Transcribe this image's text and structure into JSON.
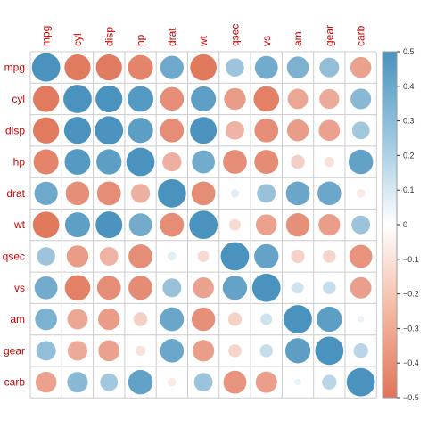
{
  "chart_data": {
    "type": "heatmap",
    "title": "",
    "variables": [
      "mpg",
      "cyl",
      "disp",
      "hp",
      "drat",
      "wt",
      "qsec",
      "vs",
      "am",
      "gear",
      "carb"
    ],
    "matrix": [
      [
        1.0,
        -0.85,
        -0.85,
        -0.78,
        0.68,
        -0.87,
        0.42,
        0.66,
        0.6,
        0.48,
        -0.55
      ],
      [
        -0.85,
        1.0,
        0.9,
        0.83,
        -0.7,
        0.78,
        -0.59,
        -0.81,
        -0.52,
        -0.49,
        0.53
      ],
      [
        -0.85,
        0.9,
        1.0,
        0.79,
        -0.71,
        0.89,
        -0.43,
        -0.71,
        -0.59,
        -0.56,
        0.39
      ],
      [
        -0.78,
        0.83,
        0.79,
        1.0,
        -0.45,
        0.66,
        -0.71,
        -0.72,
        -0.24,
        -0.13,
        0.75
      ],
      [
        0.68,
        -0.7,
        -0.71,
        -0.45,
        1.0,
        -0.71,
        0.09,
        0.44,
        0.71,
        0.7,
        -0.09
      ],
      [
        -0.87,
        0.78,
        0.89,
        0.66,
        -0.71,
        1.0,
        -0.17,
        -0.55,
        -0.69,
        -0.58,
        0.43
      ],
      [
        0.42,
        -0.59,
        -0.43,
        -0.71,
        0.09,
        -0.17,
        1.0,
        0.74,
        -0.23,
        -0.21,
        -0.66
      ],
      [
        0.66,
        -0.81,
        -0.71,
        -0.72,
        0.44,
        -0.55,
        0.74,
        1.0,
        0.17,
        0.21,
        -0.57
      ],
      [
        0.6,
        -0.52,
        -0.59,
        -0.24,
        0.71,
        -0.69,
        -0.23,
        0.17,
        1.0,
        0.79,
        0.06
      ],
      [
        0.48,
        -0.49,
        -0.56,
        -0.13,
        0.7,
        -0.58,
        -0.21,
        0.21,
        0.79,
        1.0,
        0.27
      ],
      [
        -0.55,
        0.53,
        0.39,
        0.75,
        -0.09,
        0.43,
        -0.66,
        -0.57,
        0.06,
        0.27,
        1.0
      ]
    ],
    "colorbar": {
      "range": [
        -0.5,
        0.5
      ],
      "ticks": [
        0.5,
        0.4,
        0.3,
        0.2,
        0.1,
        0,
        -0.1,
        -0.2,
        -0.3,
        -0.4,
        -0.5
      ],
      "tick_labels": [
        "0.5",
        "0.4",
        "0.3",
        "0.2",
        "0.1",
        "0",
        "−0.1",
        "−0.2",
        "−0.3",
        "−0.4",
        "−0.5"
      ]
    },
    "colors": {
      "negative": "#e07559",
      "neutral": "#ffffff",
      "positive": "#4a93be",
      "label": "#cc0000",
      "grid": "#cccccc"
    },
    "grid": true,
    "legend_position": "right"
  }
}
